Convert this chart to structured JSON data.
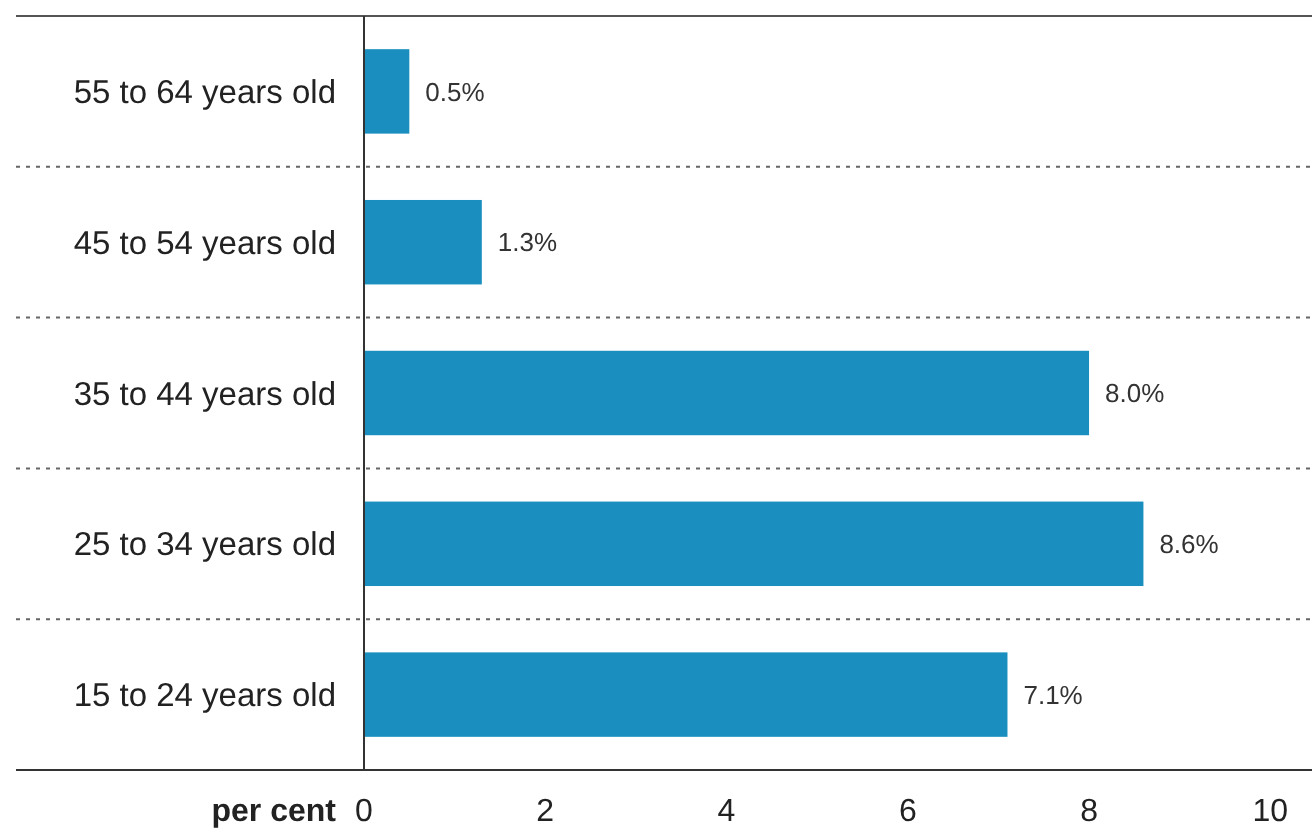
{
  "chart_data": {
    "type": "bar",
    "orientation": "horizontal",
    "xlabel": "per cent",
    "categories": [
      "55 to 64 years old",
      "45 to 54 years old",
      "35 to 44 years old",
      "25 to 34 years old",
      "15 to 24 years old"
    ],
    "values": [
      0.5,
      1.3,
      8.0,
      8.6,
      7.1
    ],
    "value_labels": [
      "0.5%",
      "1.3%",
      "8.0%",
      "8.6%",
      "7.1%"
    ],
    "color": "#1a8fbf",
    "xlim": [
      0,
      10.46
    ],
    "xticks": [
      0,
      2,
      4,
      6,
      8,
      10
    ],
    "grid": false
  }
}
